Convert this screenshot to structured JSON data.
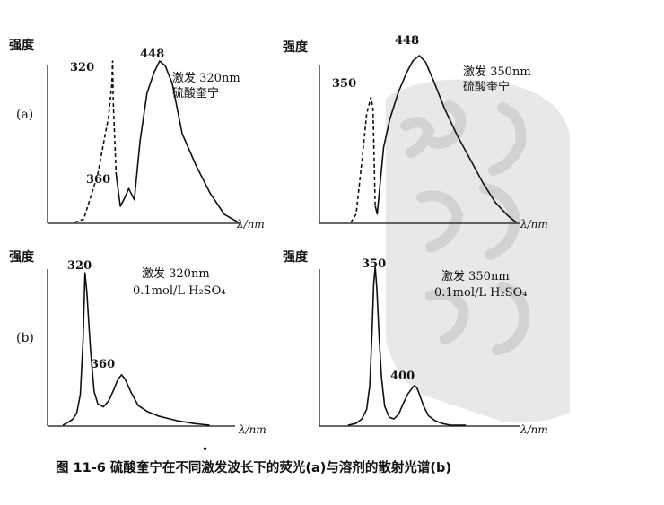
{
  "figure": {
    "caption": "图 11-6   硫酸奎宁在不同激发波长下的荧光(a)与溶剂的散射光谱(b)",
    "row_labels": [
      "(a)",
      "(b)"
    ]
  },
  "chart_data": [
    {
      "type": "line",
      "id": "a-left",
      "ylabel": "强度",
      "xlabel": "λ/nm",
      "annotation": [
        "激发 320nm",
        "硫酸奎宁"
      ],
      "peak_labels": [
        "320",
        "360",
        "448"
      ],
      "series": [
        {
          "style": "dashed",
          "x": [
            327,
            340,
            360,
            375,
            380,
            381,
            382,
            386
          ],
          "y": [
            0.0,
            0.02,
            0.3,
            0.65,
            0.86,
            1.0,
            0.75,
            0.3
          ]
        },
        {
          "style": "solid",
          "x": [
            386,
            392,
            398,
            404,
            412,
            420,
            430,
            440,
            448,
            456,
            466,
            480,
            500,
            520,
            540,
            560
          ],
          "y": [
            0.3,
            0.1,
            0.15,
            0.21,
            0.14,
            0.5,
            0.8,
            0.93,
            1.0,
            0.97,
            0.86,
            0.55,
            0.35,
            0.18,
            0.05,
            0.0
          ]
        }
      ]
    },
    {
      "type": "line",
      "id": "a-right",
      "ylabel": "强度",
      "xlabel": "λ/nm",
      "annotation": [
        "激发 350nm",
        "硫酸奎宁"
      ],
      "peak_labels": [
        "350",
        "448"
      ],
      "series": [
        {
          "style": "dashed",
          "x": [
            383,
            388,
            394,
            398,
            402,
            404,
            406
          ],
          "y": [
            0.0,
            0.05,
            0.4,
            0.65,
            0.75,
            0.68,
            0.1
          ]
        },
        {
          "style": "solid",
          "x": [
            406,
            408,
            414,
            420,
            428,
            436,
            442,
            448,
            454,
            462,
            472,
            484,
            496,
            508,
            520,
            532,
            540
          ],
          "y": [
            0.1,
            0.05,
            0.45,
            0.62,
            0.78,
            0.9,
            0.97,
            1.0,
            0.96,
            0.84,
            0.68,
            0.52,
            0.38,
            0.24,
            0.12,
            0.04,
            0.0
          ]
        }
      ]
    },
    {
      "type": "line",
      "id": "b-left",
      "ylabel": "强度",
      "xlabel": "λ/nm",
      "annotation": [
        "激发 320nm",
        "0.1mol/L H₂SO₄"
      ],
      "peak_labels": [
        "320",
        "360"
      ],
      "series": [
        {
          "style": "solid",
          "x": [
            296,
            302,
            307,
            311,
            315,
            318,
            320,
            322,
            326,
            330,
            334,
            340,
            346,
            352,
            356,
            360,
            364,
            370,
            378,
            388,
            400,
            420,
            440,
            456
          ],
          "y": [
            0.0,
            0.02,
            0.04,
            0.08,
            0.2,
            0.56,
            1.0,
            0.88,
            0.5,
            0.22,
            0.14,
            0.12,
            0.16,
            0.24,
            0.3,
            0.33,
            0.3,
            0.22,
            0.13,
            0.09,
            0.06,
            0.03,
            0.01,
            0.0
          ]
        }
      ]
    },
    {
      "type": "line",
      "id": "b-right",
      "ylabel": "强度",
      "xlabel": "λ/nm",
      "annotation": [
        "激发 350nm",
        "0.1mol/L H₂SO₄"
      ],
      "peak_labels": [
        "350",
        "400"
      ],
      "series": [
        {
          "style": "solid",
          "x": [
            315,
            325,
            333,
            339,
            343,
            346,
            348,
            350,
            352,
            355,
            358,
            362,
            368,
            374,
            380,
            386,
            392,
            398,
            400,
            403,
            407,
            412,
            418,
            426,
            436,
            446,
            456,
            466
          ],
          "y": [
            0.0,
            0.01,
            0.04,
            0.1,
            0.25,
            0.6,
            0.9,
            1.0,
            0.86,
            0.55,
            0.3,
            0.12,
            0.05,
            0.04,
            0.07,
            0.14,
            0.2,
            0.24,
            0.25,
            0.24,
            0.19,
            0.12,
            0.06,
            0.03,
            0.01,
            0.0,
            0.0,
            0.0
          ]
        }
      ]
    }
  ]
}
